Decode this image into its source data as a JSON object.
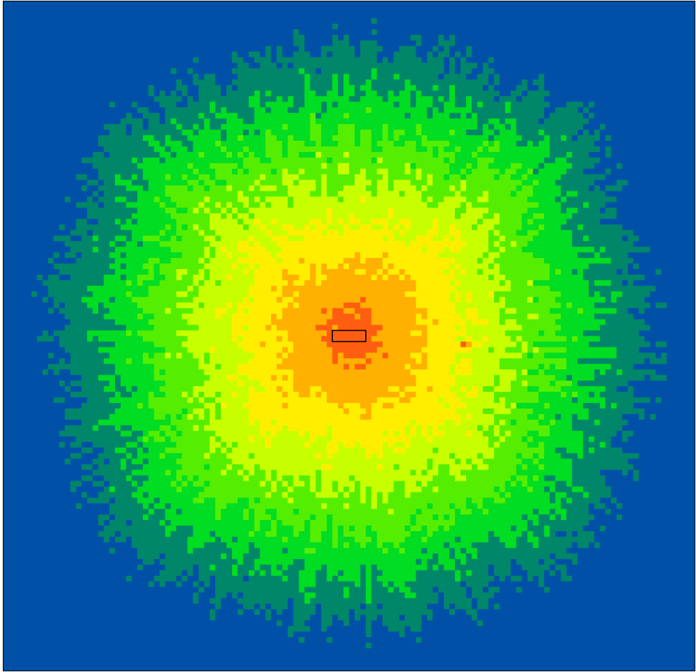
{
  "chart_data": {
    "type": "heatmap",
    "grid": {
      "cols": 124,
      "rows": 120
    },
    "value_range": [
      0,
      7
    ],
    "colormap": [
      {
        "level": 0,
        "color": "#0050a8"
      },
      {
        "level": 1,
        "color": "#00876a"
      },
      {
        "level": 2,
        "color": "#00dd22"
      },
      {
        "level": 3,
        "color": "#55ee00"
      },
      {
        "level": 4,
        "color": "#c8ff00"
      },
      {
        "level": 5,
        "color": "#ffee00"
      },
      {
        "level": 6,
        "color": "#ffb000"
      },
      {
        "level": 7,
        "color": "#ff5e10"
      }
    ],
    "field": {
      "center": [
        62.5,
        59.8
      ],
      "peak_value": 7.6,
      "decay_per_cell": 0.125,
      "ray_count": 36,
      "ray_strength": 0.9,
      "noise": 0.55,
      "seed": 1337
    },
    "source_marker": {
      "col_start": 59,
      "col_end": 65,
      "row_start": 59,
      "row_end": 60,
      "stroke": "#000000"
    },
    "hotspot": {
      "col": 82,
      "row": 61,
      "level": 7
    },
    "title": "",
    "xlabel": "",
    "ylabel": "",
    "grid_lines": false,
    "legend": "none"
  }
}
